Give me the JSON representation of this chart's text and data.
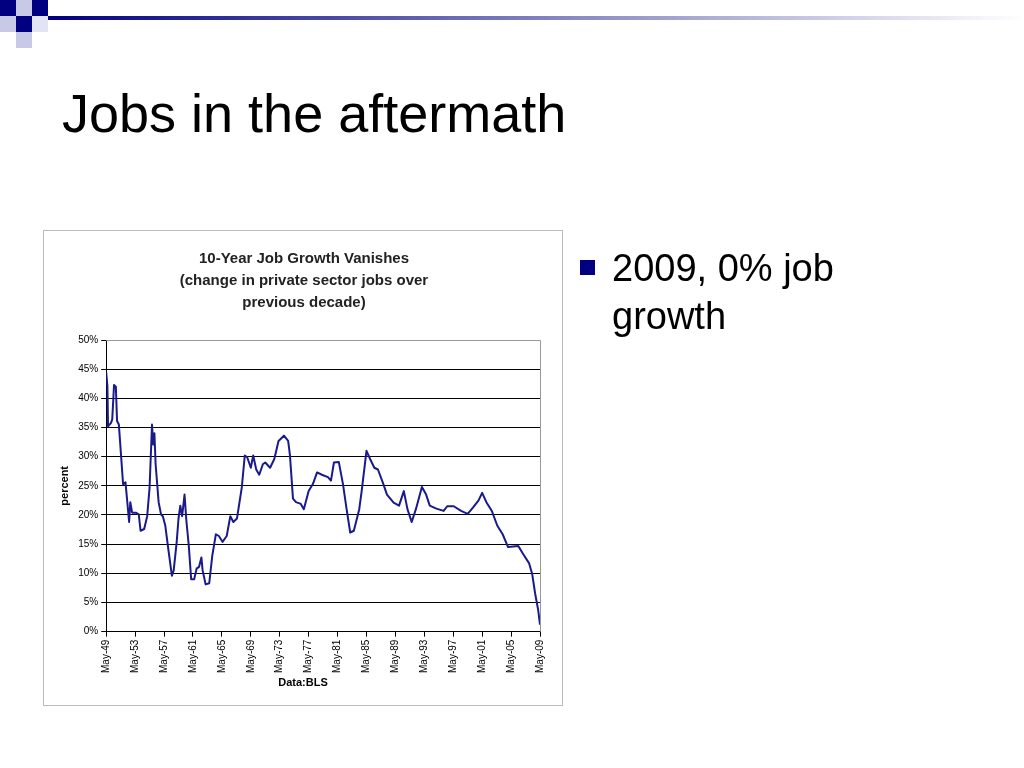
{
  "chart_data": {
    "type": "line",
    "title": "10-Year Job Growth Vanishes (change in private sector jobs over previous decade)",
    "ylabel": "percent",
    "annotations": [
      "Jobs in the aftermath",
      "2009, 0% job growth",
      "Data:BLS"
    ],
    "x": [
      "1949-05",
      "1949-07",
      "1949-08",
      "1950-01",
      "1950-03",
      "1950-06",
      "1950-09",
      "1950-11",
      "1951-02",
      "1951-09",
      "1952-01",
      "1952-07",
      "1952-09",
      "1952-12",
      "1953-06",
      "1953-11",
      "1954-02",
      "1954-08",
      "1955-01",
      "1955-05",
      "1955-09",
      "1955-11",
      "1956-01",
      "1956-03",
      "1956-08",
      "1956-12",
      "1957-03",
      "1957-07",
      "1957-12",
      "1958-06",
      "1958-09",
      "1959-02",
      "1959-05",
      "1959-08",
      "1959-11",
      "1960-03",
      "1960-06",
      "1960-10",
      "1961-02",
      "1961-07",
      "1961-11",
      "1962-03",
      "1962-07",
      "1962-09",
      "1963-02",
      "1963-08",
      "1964-01",
      "1964-07",
      "1964-12",
      "1965-06",
      "1966-01",
      "1966-07",
      "1966-12",
      "1967-06",
      "1968-02",
      "1968-07",
      "1968-11",
      "1969-05",
      "1969-09",
      "1970-02",
      "1970-07",
      "1971-01",
      "1971-05",
      "1972-01",
      "1972-08",
      "1973-03",
      "1973-12",
      "1974-07",
      "1974-10",
      "1975-03",
      "1975-08",
      "1976-04",
      "1976-09",
      "1977-05",
      "1977-12",
      "1978-07",
      "1979-03",
      "1980-01",
      "1980-06",
      "1980-11",
      "1981-07",
      "1982-02",
      "1982-08",
      "1983-02",
      "1983-08",
      "1984-05",
      "1984-09",
      "1985-05",
      "1985-11",
      "1986-06",
      "1986-12",
      "1987-08",
      "1988-03",
      "1989-02",
      "1989-11",
      "1990-07",
      "1991-01",
      "1991-08",
      "1992-03",
      "1993-01",
      "1993-08",
      "1994-02",
      "1995-01",
      "1996-01",
      "1996-07",
      "1997-06",
      "1998-06",
      "1999-05",
      "2000-02",
      "2000-11",
      "2001-05",
      "2001-12",
      "2002-09",
      "2003-06",
      "2004-03",
      "2004-12",
      "2005-08",
      "2006-05",
      "2007-01",
      "2007-11",
      "2008-04",
      "2008-09",
      "2009-02",
      "2009-05"
    ],
    "series": [
      {
        "color": "#1a1a8c",
        "values": [
          44.4,
          42,
          35.2,
          35.8,
          36.4,
          42.3,
          42,
          36.1,
          35.5,
          25.3,
          25.6,
          18.8,
          22.2,
          20.4,
          20.4,
          20.1,
          17.3,
          17.6,
          19.8,
          24.7,
          35.5,
          32.1,
          34,
          28.7,
          22.2,
          20.1,
          19.8,
          18.2,
          14.2,
          9.6,
          10.5,
          15.4,
          19.4,
          21.6,
          19.8,
          23.5,
          19.1,
          14.8,
          9,
          9,
          10.8,
          11.1,
          12.7,
          10.5,
          8.1,
          8.3,
          13,
          16.7,
          16.4,
          15.4,
          16.4,
          19.8,
          18.8,
          19.4,
          24.7,
          30.2,
          29.9,
          28.1,
          30.2,
          27.8,
          26.9,
          28.7,
          29,
          28.1,
          29.6,
          32.7,
          33.6,
          32.7,
          30.2,
          22.8,
          22.2,
          21.9,
          21,
          24.1,
          25.3,
          27.3,
          26.9,
          26.5,
          25.9,
          29,
          29.1,
          25.3,
          21,
          17,
          17.3,
          21,
          24.1,
          31,
          29.6,
          28.1,
          27.8,
          25.6,
          23.5,
          22.1,
          21.6,
          24.1,
          21,
          18.8,
          21,
          24.8,
          23.5,
          21.6,
          21.1,
          20.7,
          21.5,
          21.5,
          20.7,
          20.2,
          21.3,
          22.5,
          23.8,
          22.2,
          20.7,
          18.2,
          16.7,
          14.5,
          14.6,
          14.7,
          13.3,
          11.7,
          9.9,
          6.5,
          3.7,
          1.2
        ]
      }
    ],
    "xlim": [
      "1949-05",
      "2009-05"
    ],
    "xticks": [
      {
        "value": "1949-05",
        "label": "May-49"
      },
      {
        "value": "1953-05",
        "label": "May-53"
      },
      {
        "value": "1957-05",
        "label": "May-57"
      },
      {
        "value": "1961-05",
        "label": "May-61"
      },
      {
        "value": "1965-05",
        "label": "May-65"
      },
      {
        "value": "1969-05",
        "label": "May-69"
      },
      {
        "value": "1973-05",
        "label": "May-73"
      },
      {
        "value": "1977-05",
        "label": "May-77"
      },
      {
        "value": "1981-05",
        "label": "May-81"
      },
      {
        "value": "1985-05",
        "label": "May-85"
      },
      {
        "value": "1989-05",
        "label": "May-89"
      },
      {
        "value": "1993-05",
        "label": "May-93"
      },
      {
        "value": "1997-05",
        "label": "May-97"
      },
      {
        "value": "2001-05",
        "label": "May-01"
      },
      {
        "value": "2005-05",
        "label": "May-05"
      },
      {
        "value": "2009-05",
        "label": "May-09"
      }
    ],
    "ylim": [
      0,
      50
    ],
    "yticks": [
      {
        "value": 0,
        "label": "0%"
      },
      {
        "value": 5,
        "label": "5%"
      },
      {
        "value": 10,
        "label": "10%"
      },
      {
        "value": 15,
        "label": "15%"
      },
      {
        "value": 20,
        "label": "20%"
      },
      {
        "value": 25,
        "label": "25%"
      },
      {
        "value": 30,
        "label": "30%"
      },
      {
        "value": 35,
        "label": "35%"
      },
      {
        "value": 40,
        "label": "40%"
      },
      {
        "value": 45,
        "label": "45%"
      },
      {
        "value": 50,
        "label": "50%"
      }
    ],
    "grid": "y",
    "legend": false,
    "marker": "none",
    "line_style": "solid"
  }
}
